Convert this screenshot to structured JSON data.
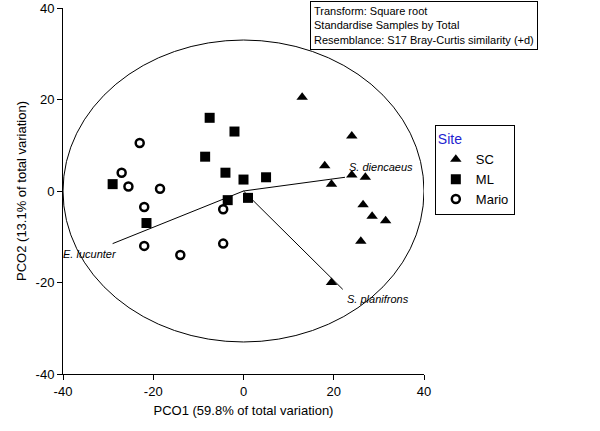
{
  "chart_data": {
    "type": "scatter",
    "xlabel": "PCO1 (59.8% of total variation)",
    "ylabel": "PCO2 (13.1% of total variation)",
    "xlim": [
      -40,
      40
    ],
    "ylim": [
      -40,
      40
    ],
    "xticks": [
      -40,
      -20,
      0,
      20,
      40
    ],
    "yticks": [
      -40,
      -20,
      0,
      20,
      40
    ],
    "grid": false,
    "legend": "right",
    "legend_title": "Site",
    "box_text": [
      "Transform: Square root",
      "Standardise Samples by Total",
      "Resemblance: S17 Bray-Curtis similarity (+d)"
    ],
    "circle": {
      "x": [
        -40,
        40
      ],
      "y": [
        -33,
        33
      ]
    },
    "series": [
      {
        "name": "SC",
        "color": "#000000",
        "marker": "triangle-up",
        "x": [
          13,
          18,
          19.5,
          24,
          24,
          27,
          26.5,
          28.5,
          31.5,
          26,
          19.5
        ],
        "y": [
          20.5,
          5.5,
          1.5,
          12,
          3.5,
          3,
          -3,
          -5.5,
          -6.5,
          -11,
          -20
        ]
      },
      {
        "name": "ML",
        "color": "#000000",
        "marker": "square",
        "x": [
          -7.5,
          -2,
          -8.5,
          -4,
          0,
          5,
          -29,
          -21.5,
          -3.5,
          1
        ],
        "y": [
          16,
          13,
          7.5,
          4,
          2.5,
          3,
          1.5,
          -7,
          -2,
          -1.5
        ]
      },
      {
        "name": "Mario",
        "color": "#000000",
        "marker": "circle-open",
        "x": [
          -23,
          -27,
          -25.5,
          -18.5,
          -22,
          -22,
          -4.5,
          -4.5,
          -14
        ],
        "y": [
          10.5,
          4,
          1,
          0.5,
          -3.5,
          -12,
          -4,
          -11.5,
          -14
        ]
      }
    ],
    "vectors": [
      {
        "name": "E. lucunter",
        "x": [
          0,
          -29
        ],
        "y": [
          0,
          -11.5
        ]
      },
      {
        "name": "S. diencaeus",
        "x": [
          0,
          22.5
        ],
        "y": [
          0,
          3
        ]
      },
      {
        "name": "S. planifrons",
        "x": [
          0,
          22
        ],
        "y": [
          0,
          -21.5
        ]
      }
    ]
  }
}
